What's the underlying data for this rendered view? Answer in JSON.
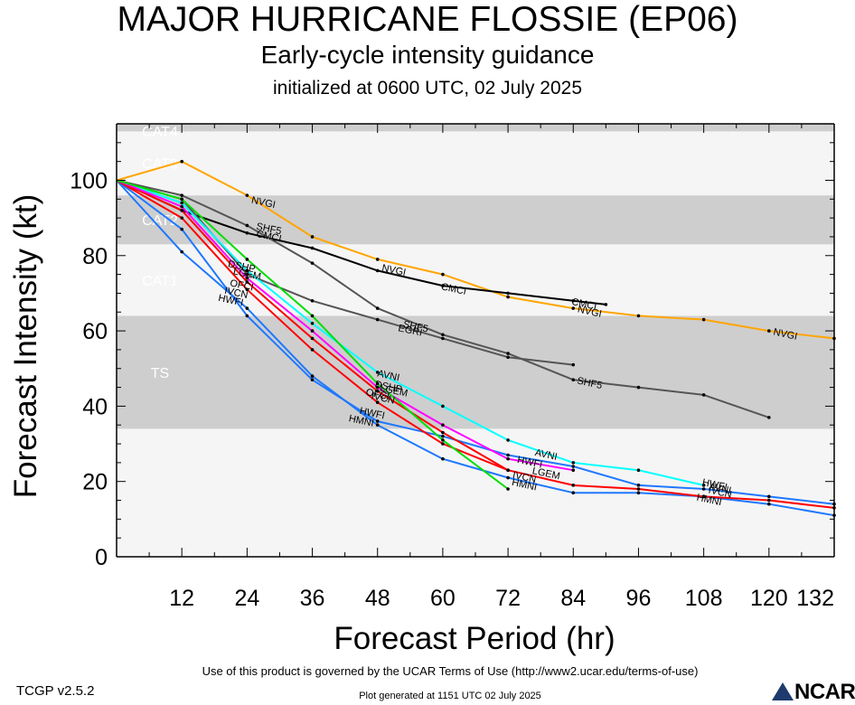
{
  "title": "MAJOR HURRICANE FLOSSIE (EP06)",
  "subtitle": "Early-cycle intensity guidance",
  "init_line": "initialized at 0600 UTC, 02 July 2025",
  "footer": {
    "version": "TCGP v2.5.2",
    "terms": "Use of this product is governed by the UCAR Terms of Use (http://www2.ucar.edu/terms-of-use)",
    "generated": "Plot generated at 1151 UTC   02 July 2025",
    "logo_text": "NCAR"
  },
  "colors": {
    "band_light": "#f5f5f5",
    "band_dark": "#cecece",
    "band_label": "#ffffff"
  },
  "chart_data": {
    "type": "line",
    "xlabel": "Forecast Period (hr)",
    "ylabel": "Forecast Intensity (kt)",
    "xlim": [
      0,
      132
    ],
    "ylim": [
      0,
      115
    ],
    "xticks": [
      12,
      24,
      36,
      48,
      60,
      72,
      84,
      96,
      108,
      120,
      132
    ],
    "yticks": [
      0,
      20,
      40,
      60,
      80,
      100
    ],
    "grid": false,
    "bands": [
      {
        "label": "TS",
        "from": 34,
        "to": 64,
        "shade": "dark"
      },
      {
        "label": "CAT1",
        "from": 64,
        "to": 83,
        "shade": "light"
      },
      {
        "label": "CAT2",
        "from": 83,
        "to": 96,
        "shade": "dark"
      },
      {
        "label": "CAT3",
        "from": 96,
        "to": 113,
        "shade": "light"
      },
      {
        "label": "CAT4",
        "from": 113,
        "to": 137,
        "shade": "dark"
      }
    ],
    "series": [
      {
        "name": "NVGI",
        "color": "#ffa500",
        "x": [
          0,
          12,
          24,
          36,
          48,
          60,
          72,
          84,
          96,
          108,
          120,
          132
        ],
        "values": [
          100,
          105,
          96,
          85,
          79,
          75,
          69,
          66,
          64,
          63,
          60,
          58
        ]
      },
      {
        "name": "CMCI",
        "color": "#000000",
        "x": [
          0,
          12,
          24,
          36,
          48,
          60,
          72,
          84,
          90
        ],
        "values": [
          100,
          92,
          86,
          82,
          76,
          72,
          70,
          68,
          67
        ]
      },
      {
        "name": "SHF5",
        "color": "#555555",
        "x": [
          0,
          12,
          24,
          36,
          48,
          60,
          72,
          84,
          96,
          108,
          120
        ],
        "values": [
          100,
          96,
          88,
          78,
          66,
          59,
          54,
          47,
          45,
          43,
          37
        ]
      },
      {
        "name": "EGRI",
        "color": "#555555",
        "x": [
          0,
          12,
          24,
          36,
          48,
          60,
          72,
          84
        ],
        "values": [
          100,
          95,
          75,
          68,
          63,
          58,
          53,
          51
        ]
      },
      {
        "name": "AVNI",
        "color": "#00ffff",
        "x": [
          0,
          12,
          24,
          36,
          48,
          60,
          72,
          84,
          96,
          108
        ],
        "values": [
          100,
          94,
          76,
          62,
          49,
          40,
          31,
          25,
          23,
          19
        ]
      },
      {
        "name": "HWFI",
        "color": "#1e78ff",
        "x": [
          0,
          12,
          24,
          36,
          48,
          60,
          72,
          84,
          96,
          108,
          120,
          132
        ],
        "values": [
          100,
          87,
          64,
          47,
          36,
          32,
          27,
          24,
          19,
          18,
          16,
          14
        ]
      },
      {
        "name": "HMNI",
        "color": "#1e78ff",
        "x": [
          0,
          12,
          24,
          36,
          48,
          60,
          72,
          84,
          96,
          108,
          120,
          132
        ],
        "values": [
          100,
          81,
          66,
          48,
          35,
          26,
          21,
          17,
          17,
          16,
          14,
          11
        ]
      },
      {
        "name": "IVCN",
        "color": "#ff0000",
        "x": [
          0,
          12,
          24,
          36,
          48,
          60,
          72,
          84,
          96,
          108,
          120,
          132
        ],
        "values": [
          100,
          90,
          71,
          55,
          41,
          30,
          23,
          19,
          18,
          16,
          15,
          13
        ]
      },
      {
        "name": "DSHP",
        "color": "#ff0000",
        "x": [
          0,
          12,
          24,
          36,
          48,
          60,
          72
        ],
        "values": [
          100,
          92,
          73,
          58,
          44,
          33,
          23
        ]
      },
      {
        "name": "LGEM",
        "color": "#ff00ff",
        "x": [
          0,
          12,
          24,
          36,
          48,
          60,
          72,
          84
        ],
        "values": [
          100,
          93,
          74,
          60,
          45,
          35,
          26,
          23
        ]
      },
      {
        "name": "OFCI",
        "color": "#00dd00",
        "x": [
          0,
          12,
          24,
          36,
          48,
          60,
          72
        ],
        "values": [
          100,
          95,
          79,
          64,
          46,
          31,
          18
        ]
      }
    ],
    "line_labels": [
      {
        "series": "NVGI",
        "text": "NVGI",
        "x": 27,
        "y": 94
      },
      {
        "series": "NVGI",
        "text": "NVGI",
        "x": 51,
        "y": 76
      },
      {
        "series": "NVGI",
        "text": "NVGI",
        "x": 87,
        "y": 65
      },
      {
        "series": "NVGI",
        "text": "NVGI",
        "x": 123,
        "y": 59
      },
      {
        "series": "CMCI",
        "text": "CMCI",
        "x": 28,
        "y": 85
      },
      {
        "series": "CMCI",
        "text": "CMCI",
        "x": 62,
        "y": 71
      },
      {
        "series": "CMCI",
        "text": "CMCI",
        "x": 86,
        "y": 67
      },
      {
        "series": "SHF5",
        "text": "SHF5",
        "x": 28,
        "y": 87
      },
      {
        "series": "SHF5",
        "text": "SHF5",
        "x": 55,
        "y": 61
      },
      {
        "series": "SHF5",
        "text": "SHF5",
        "x": 87,
        "y": 46
      },
      {
        "series": "EGRI",
        "text": "EGRI",
        "x": 54,
        "y": 60
      },
      {
        "series": "AVNI",
        "text": "AVNI",
        "x": 50,
        "y": 48
      },
      {
        "series": "AVNI",
        "text": "AVNI",
        "x": 79,
        "y": 27
      },
      {
        "series": "AVNI",
        "text": "AVNI",
        "x": 111,
        "y": 18
      },
      {
        "series": "HWFI",
        "text": "HWFI",
        "x": 21,
        "y": 68
      },
      {
        "series": "HWFI",
        "text": "HWFI",
        "x": 47,
        "y": 38
      },
      {
        "series": "HWFI",
        "text": "HWFI",
        "x": 76,
        "y": 25
      },
      {
        "series": "HWFI",
        "text": "HWFI",
        "x": 110,
        "y": 19
      },
      {
        "series": "HMNI",
        "text": "HMNI",
        "x": 45,
        "y": 36
      },
      {
        "series": "HMNI",
        "text": "HMNI",
        "x": 75,
        "y": 19
      },
      {
        "series": "HMNI",
        "text": "HMNI",
        "x": 109,
        "y": 15
      },
      {
        "series": "IVCN",
        "text": "IVCN",
        "x": 22,
        "y": 70
      },
      {
        "series": "IVCN",
        "text": "IVCN",
        "x": 49,
        "y": 42
      },
      {
        "series": "IVCN",
        "text": "IVCN",
        "x": 75,
        "y": 21
      },
      {
        "series": "IVCN",
        "text": "IVCN",
        "x": 111,
        "y": 17
      },
      {
        "series": "DSHP",
        "text": "DSHP",
        "x": 23,
        "y": 77
      },
      {
        "series": "DSHP",
        "text": "DSHP",
        "x": 50,
        "y": 45
      },
      {
        "series": "LGEM",
        "text": "LGEM",
        "x": 24,
        "y": 75
      },
      {
        "series": "LGEM",
        "text": "LGEM",
        "x": 51,
        "y": 44
      },
      {
        "series": "LGEM",
        "text": "LGEM",
        "x": 79,
        "y": 22
      },
      {
        "series": "OFCI",
        "text": "OFCI",
        "x": 23,
        "y": 72
      },
      {
        "series": "OFCI",
        "text": "OFCI",
        "x": 48,
        "y": 43
      }
    ]
  }
}
